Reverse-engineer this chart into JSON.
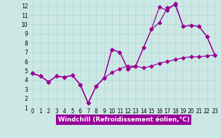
{
  "xlabel": "Windchill (Refroidissement éolien,°C)",
  "background_color": "#cce8e4",
  "grid_color": "#b0d8d4",
  "line_color": "#990099",
  "xlim": [
    -0.5,
    23.5
  ],
  "ylim": [
    1,
    12.5
  ],
  "xticks": [
    0,
    1,
    2,
    3,
    4,
    5,
    6,
    7,
    8,
    9,
    10,
    11,
    12,
    13,
    14,
    15,
    16,
    17,
    18,
    19,
    20,
    21,
    22,
    23
  ],
  "yticks": [
    1,
    2,
    3,
    4,
    5,
    6,
    7,
    8,
    9,
    10,
    11,
    12
  ],
  "line1_x": [
    0,
    1,
    2,
    3,
    4,
    5,
    6,
    7,
    8,
    9,
    10,
    11,
    12,
    13,
    14,
    15,
    16,
    17,
    18,
    19,
    20,
    21,
    22,
    23
  ],
  "line1_y": [
    4.7,
    4.4,
    3.8,
    4.4,
    4.3,
    4.5,
    3.5,
    1.5,
    3.3,
    4.2,
    4.8,
    5.2,
    5.5,
    5.5,
    5.3,
    5.5,
    5.8,
    6.0,
    6.2,
    6.4,
    6.5,
    6.5,
    6.6,
    6.7
  ],
  "line2_x": [
    0,
    1,
    2,
    3,
    4,
    5,
    6,
    7,
    8,
    9,
    10,
    11,
    12,
    13,
    14,
    15,
    16,
    17,
    18,
    19,
    20,
    21,
    22,
    23
  ],
  "line2_y": [
    4.7,
    4.4,
    3.8,
    4.4,
    4.3,
    4.5,
    3.5,
    1.5,
    3.3,
    4.2,
    7.3,
    7.0,
    5.2,
    5.5,
    7.5,
    9.5,
    10.2,
    11.8,
    12.1,
    9.8,
    9.9,
    9.8,
    8.7,
    6.7
  ],
  "line3_x": [
    0,
    1,
    2,
    3,
    4,
    5,
    6,
    7,
    8,
    9,
    10,
    11,
    12,
    13,
    14,
    15,
    16,
    17,
    18,
    19,
    20,
    21,
    22,
    23
  ],
  "line3_y": [
    4.7,
    4.4,
    3.8,
    4.4,
    4.3,
    4.5,
    3.5,
    1.5,
    3.3,
    4.2,
    7.3,
    7.0,
    5.2,
    5.5,
    7.5,
    9.5,
    11.9,
    11.5,
    12.3,
    9.8,
    9.9,
    9.8,
    8.7,
    6.7
  ],
  "marker": "D",
  "markersize": 2.5,
  "linewidth": 0.9,
  "tick_fontsize": 5.5,
  "xlabel_fontsize": 6.5,
  "xlabel_fontweight": "bold"
}
